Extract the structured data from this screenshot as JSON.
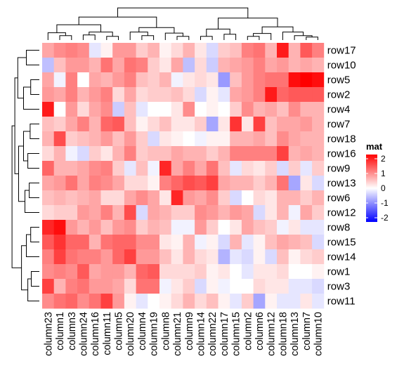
{
  "chart_data": {
    "type": "heatmap",
    "title": "",
    "xlabel": "",
    "ylabel": "",
    "rows": [
      "row17",
      "row10",
      "row5",
      "row2",
      "row4",
      "row7",
      "row18",
      "row16",
      "row9",
      "row13",
      "row6",
      "row12",
      "row8",
      "row15",
      "row14",
      "row1",
      "row3",
      "row11"
    ],
    "columns": [
      "column23",
      "column1",
      "column3",
      "column24",
      "column16",
      "column11",
      "column5",
      "column20",
      "column4",
      "column19",
      "column8",
      "column21",
      "column9",
      "column14",
      "column22",
      "column17",
      "column15",
      "column2",
      "column6",
      "column12",
      "column18",
      "column13",
      "column7",
      "column10"
    ],
    "values": [
      [
        0.7,
        0.9,
        1.0,
        0.9,
        -0.2,
        0.1,
        0.8,
        0.8,
        0.4,
        0.6,
        0.1,
        0.3,
        0.6,
        0.2,
        -0.3,
        0.4,
        0.5,
        1.0,
        1.1,
        0.6,
        1.8,
        0.6,
        1.3,
        1.0
      ],
      [
        -0.5,
        0.5,
        0.8,
        0.8,
        0.6,
        1.1,
        0.7,
        1.1,
        1.0,
        0.4,
        0.2,
        0.7,
        -0.5,
        0.3,
        -0.4,
        0.6,
        0.7,
        0.8,
        1.0,
        0.7,
        0.8,
        0.6,
        0.7,
        0.6
      ],
      [
        0.7,
        -0.1,
        1.0,
        0.0,
        0.7,
        0.6,
        0.8,
        1.0,
        0.5,
        0.4,
        0.6,
        -0.1,
        0.2,
        0.3,
        0.2,
        -0.8,
        0.5,
        0.8,
        1.0,
        1.1,
        1.1,
        1.9,
        2.0,
        1.9
      ],
      [
        0.8,
        0.7,
        1.0,
        0.6,
        0.8,
        1.0,
        0.3,
        0.7,
        0.3,
        0.4,
        0.4,
        0.5,
        0.3,
        -0.3,
        0.1,
        -0.2,
        0.7,
        0.8,
        1.0,
        1.8,
        1.2,
        1.3,
        1.3,
        1.3
      ],
      [
        1.8,
        0.0,
        0.8,
        0.3,
        0.7,
        0.9,
        -0.4,
        0.5,
        -0.2,
        0.0,
        0.0,
        0.2,
        0.9,
        0.0,
        0.1,
        0.0,
        0.4,
        0.9,
        0.6,
        0.7,
        0.5,
        0.9,
        0.6,
        0.6
      ],
      [
        0.5,
        0.4,
        0.7,
        1.0,
        0.6,
        1.2,
        1.3,
        0.5,
        0.1,
        0.3,
        0.5,
        0.2,
        0.2,
        0.4,
        -0.7,
        0.2,
        1.6,
        0.2,
        1.5,
        0.5,
        0.7,
        0.7,
        0.8,
        0.6
      ],
      [
        0.6,
        1.4,
        0.4,
        0.5,
        0.6,
        0.8,
        0.5,
        0.8,
        0.4,
        -0.3,
        0.2,
        0.1,
        0.0,
        -0.1,
        0.1,
        0.1,
        0.6,
        0.6,
        0.7,
        0.5,
        0.9,
        0.7,
        0.6,
        0.6
      ],
      [
        0.3,
        0.6,
        -0.1,
        -0.3,
        0.4,
        0.2,
        0.6,
        1.0,
        0.4,
        0.5,
        0.5,
        0.7,
        0.6,
        0.6,
        0.4,
        0.6,
        1.0,
        1.0,
        1.0,
        1.0,
        1.5,
        0.6,
        0.7,
        0.6
      ],
      [
        1.2,
        0.6,
        0.6,
        0.7,
        0.9,
        1.0,
        0.4,
        -0.2,
        0.5,
        -0.1,
        1.7,
        0.7,
        1.0,
        0.7,
        1.1,
        0.5,
        -0.2,
        0.3,
        0.2,
        0.4,
        -0.3,
        0.4,
        -0.2,
        0.4
      ],
      [
        0.7,
        0.8,
        1.1,
        0.7,
        1.0,
        0.9,
        0.7,
        0.3,
        0.3,
        0.1,
        1.0,
        1.2,
        1.4,
        1.3,
        1.5,
        0.7,
        0.6,
        0.6,
        0.4,
        0.6,
        1.1,
        -0.7,
        0.2,
        -0.3
      ],
      [
        0.5,
        0.6,
        0.5,
        0.6,
        0.7,
        0.3,
        0.3,
        0.7,
        0.9,
        0.7,
        0.2,
        1.7,
        0.8,
        0.7,
        0.9,
        0.4,
        -0.3,
        0.0,
        0.3,
        0.2,
        0.6,
        0.6,
        0.4,
        0.6
      ],
      [
        0.3,
        0.4,
        0.4,
        0.8,
        0.7,
        1.0,
        0.6,
        1.4,
        -0.3,
        0.7,
        0.6,
        0.4,
        0.4,
        0.9,
        0.8,
        0.6,
        0.8,
        0.7,
        -0.3,
        0.2,
        0.6,
        -0.1,
        0.7,
        0.4
      ],
      [
        1.7,
        1.9,
        0.8,
        0.6,
        0.8,
        0.5,
        0.8,
        0.9,
        0.4,
        0.6,
        0.5,
        -0.1,
        -0.1,
        0.8,
        0.4,
        0.0,
        0.2,
        0.7,
        0.5,
        0.4,
        -0.1,
        0.2,
        -0.2,
        -0.2
      ],
      [
        1.3,
        1.6,
        1.2,
        1.2,
        0.6,
        1.1,
        1.2,
        1.2,
        0.9,
        0.9,
        0.2,
        0.1,
        0.6,
        -0.1,
        0.1,
        -0.3,
        0.6,
        -0.2,
        0.1,
        0.5,
        0.7,
        0.6,
        0.5,
        -0.3
      ],
      [
        1.0,
        1.5,
        1.1,
        1.0,
        1.0,
        0.8,
        1.2,
        1.5,
        0.8,
        0.8,
        0.5,
        0.2,
        0.6,
        0.3,
        0.2,
        -0.6,
        -0.2,
        -0.3,
        0.1,
        -0.3,
        0.5,
        0.1,
        0.3,
        0.4
      ],
      [
        0.9,
        1.0,
        0.9,
        1.3,
        0.7,
        0.8,
        0.8,
        0.6,
        1.2,
        1.3,
        0.3,
        0.3,
        0.3,
        0.4,
        0.1,
        0.2,
        0.0,
        -0.2,
        0.2,
        0.2,
        0.3,
        0.0,
        0.0,
        0.1
      ],
      [
        1.5,
        0.6,
        1.0,
        1.1,
        0.8,
        0.8,
        0.7,
        0.3,
        1.1,
        1.1,
        -0.1,
        0.2,
        0.4,
        -0.3,
        0.1,
        -0.1,
        0.0,
        0.0,
        0.3,
        0.2,
        0.2,
        -0.2,
        -0.2,
        -0.3
      ],
      [
        0.9,
        1.1,
        1.2,
        0.9,
        1.1,
        1.5,
        0.8,
        0.1,
        -0.2,
        0.0,
        0.1,
        0.3,
        0.6,
        0.3,
        0.5,
        0.1,
        -0.2,
        0.4,
        -0.7,
        0.1,
        -0.2,
        -0.2,
        0.2,
        -0.2
      ]
    ],
    "legend": {
      "title": "mat",
      "ticks": [
        "2",
        "1",
        "0",
        "-1",
        "-2"
      ],
      "range": [
        -2,
        2
      ],
      "colors": {
        "low": "#0000ff",
        "mid": "#ffffff",
        "high": "#ff0000"
      }
    },
    "row_dendrogram": true,
    "column_dendrogram": true,
    "grid": false
  }
}
